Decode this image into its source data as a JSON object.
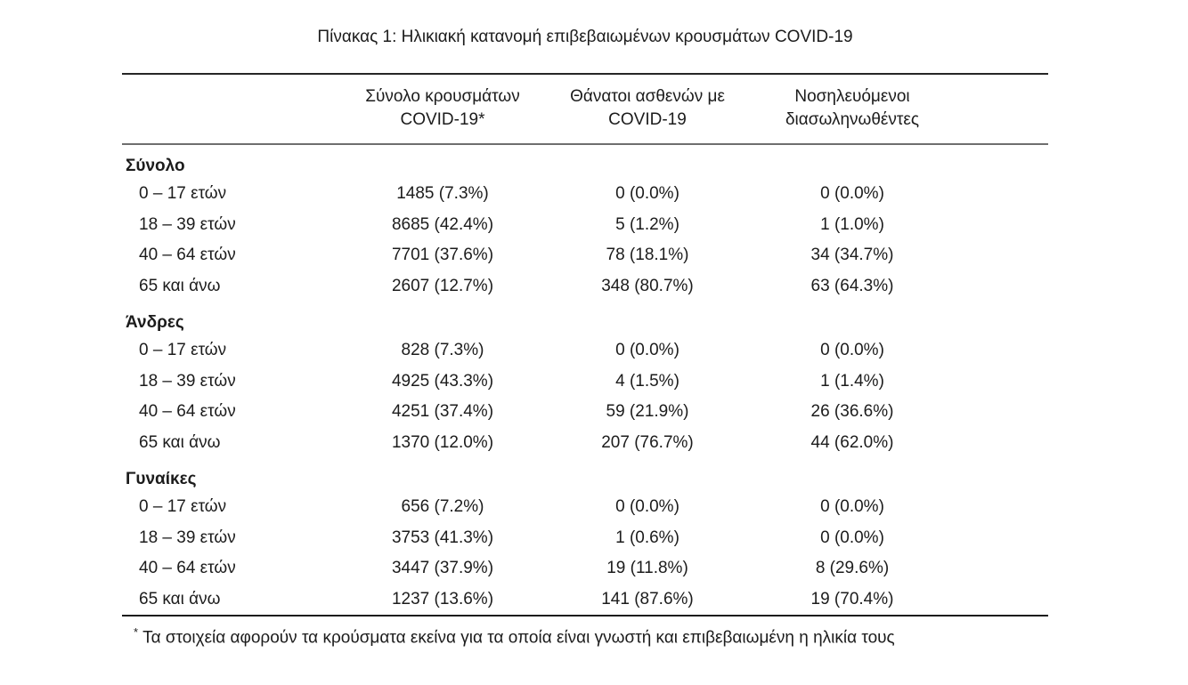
{
  "title": "Πίνακας 1: Ηλικιακή κατανομή επιβεβαιωμένων κρουσμάτων COVID-19",
  "columns": [
    {
      "line1": "Σύνολο κρουσμάτων",
      "line2": "COVID-19*"
    },
    {
      "line1": "Θάνατοι ασθενών με",
      "line2": "COVID-19"
    },
    {
      "line1": "Νοσηλευόμενοι",
      "line2": "διασωληνωθέντες"
    }
  ],
  "sections": [
    {
      "label": "Σύνολο",
      "rows": [
        {
          "label": "0 – 17 ετών",
          "cells": [
            "1485 (7.3%)",
            "0 (0.0%)",
            "0 (0.0%)"
          ]
        },
        {
          "label": "18 – 39 ετών",
          "cells": [
            "8685 (42.4%)",
            "5 (1.2%)",
            "1 (1.0%)"
          ]
        },
        {
          "label": "40 – 64 ετών",
          "cells": [
            "7701 (37.6%)",
            "78 (18.1%)",
            "34 (34.7%)"
          ]
        },
        {
          "label": "65 και άνω",
          "cells": [
            "2607 (12.7%)",
            "348 (80.7%)",
            "63 (64.3%)"
          ]
        }
      ]
    },
    {
      "label": "Άνδρες",
      "rows": [
        {
          "label": "0 – 17 ετών",
          "cells": [
            "828 (7.3%)",
            "0 (0.0%)",
            "0 (0.0%)"
          ]
        },
        {
          "label": "18 – 39 ετών",
          "cells": [
            "4925 (43.3%)",
            "4 (1.5%)",
            "1 (1.4%)"
          ]
        },
        {
          "label": "40 – 64 ετών",
          "cells": [
            "4251 (37.4%)",
            "59 (21.9%)",
            "26 (36.6%)"
          ]
        },
        {
          "label": "65 και άνω",
          "cells": [
            "1370 (12.0%)",
            "207 (76.7%)",
            "44 (62.0%)"
          ]
        }
      ]
    },
    {
      "label": "Γυναίκες",
      "rows": [
        {
          "label": "0 – 17 ετών",
          "cells": [
            "656 (7.2%)",
            "0 (0.0%)",
            "0 (0.0%)"
          ]
        },
        {
          "label": "18 – 39 ετών",
          "cells": [
            "3753 (41.3%)",
            "1 (0.6%)",
            "0 (0.0%)"
          ]
        },
        {
          "label": "40 – 64 ετών",
          "cells": [
            "3447 (37.9%)",
            "19 (11.8%)",
            "8 (29.6%)"
          ]
        },
        {
          "label": "65 και άνω",
          "cells": [
            "1237 (13.6%)",
            "141 (87.6%)",
            "19 (70.4%)"
          ]
        }
      ]
    }
  ],
  "footnote": {
    "marker": "*",
    "text": "Τα στοιχεία αφορούν τα κρούσματα εκείνα για τα οποία είναι γνωστή και επιβεβαιωμένη η ηλικία τους"
  },
  "colors": {
    "text": "#1c1c1c",
    "rule_top": "#262626",
    "rule_header": "#6e6e6e",
    "rule_bottom": "#1a1a1a",
    "background": "#ffffff"
  }
}
